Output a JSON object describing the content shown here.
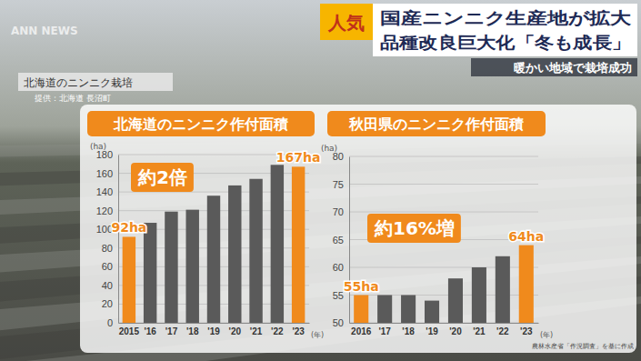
{
  "logo": "ANN NEWS",
  "header": {
    "badge": "人気",
    "headline": [
      "国産ニンニク生産地が拡大",
      "品種改良巨大化「冬も成長」"
    ],
    "subhead": "暖かい地域で栽培成功"
  },
  "caption": {
    "title": "北海道のニンニク栽培",
    "credit": "提供：北海道 長沼町"
  },
  "source": "農林水産省「作況調査」を基に作成",
  "chart_data": [
    {
      "type": "bar",
      "title": "北海道のニンニク作付面積",
      "annotation": "約2倍",
      "y_label": "(ha)",
      "x_label": "(年)",
      "categories": [
        "2015",
        "'16",
        "'17",
        "'18",
        "'19",
        "'20",
        "'21",
        "'22",
        "'23"
      ],
      "values": [
        92,
        107,
        119,
        121,
        136,
        147,
        154,
        169,
        167
      ],
      "value_labels": [
        "92ha",
        null,
        null,
        null,
        null,
        null,
        null,
        null,
        "167ha"
      ],
      "colors": [
        "#f08a1c",
        "#5a5a5a",
        "#5a5a5a",
        "#5a5a5a",
        "#5a5a5a",
        "#5a5a5a",
        "#5a5a5a",
        "#5a5a5a",
        "#f08a1c"
      ],
      "ylim": [
        0,
        180
      ],
      "yticks": [
        0,
        20,
        40,
        60,
        80,
        100,
        120,
        140,
        160,
        180
      ],
      "grid": true
    },
    {
      "type": "bar",
      "title": "秋田県のニンニク作付面積",
      "annotation": "約16%増",
      "y_label": "(ha)",
      "x_label": "(年)",
      "categories": [
        "2016",
        "'17",
        "'18",
        "'19",
        "'20",
        "'21",
        "'22",
        "'23"
      ],
      "values": [
        55,
        55,
        55,
        54,
        58,
        60,
        62,
        64
      ],
      "value_labels": [
        "55ha",
        null,
        null,
        null,
        null,
        null,
        null,
        "64ha"
      ],
      "colors": [
        "#f08a1c",
        "#5a5a5a",
        "#5a5a5a",
        "#5a5a5a",
        "#5a5a5a",
        "#5a5a5a",
        "#5a5a5a",
        "#f08a1c"
      ],
      "ylim": [
        50,
        80
      ],
      "yticks": [
        50,
        55,
        60,
        65,
        70,
        75,
        80
      ],
      "grid": true
    }
  ]
}
